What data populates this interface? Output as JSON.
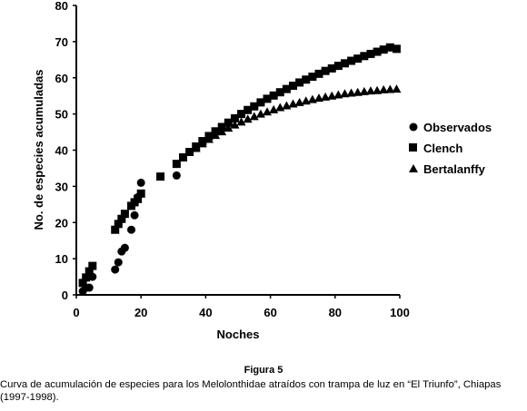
{
  "chart_data": {
    "type": "scatter",
    "title": "",
    "xlabel": "Noches",
    "ylabel": "No. de especies acumuladas",
    "xlim": [
      0,
      100
    ],
    "ylim": [
      0,
      80
    ],
    "xticks": [
      0,
      20,
      40,
      60,
      80,
      100
    ],
    "yticks": [
      0,
      10,
      20,
      30,
      40,
      50,
      60,
      70,
      80
    ],
    "grid": false,
    "legend_position": "right",
    "series": [
      {
        "name": "Observados",
        "marker": "circle",
        "x": [
          2,
          3,
          4,
          5,
          12,
          13,
          14,
          15,
          17,
          18,
          19,
          20,
          31
        ],
        "y": [
          1,
          2,
          2,
          5,
          7,
          9,
          12,
          13,
          18,
          22,
          27,
          31,
          33
        ]
      },
      {
        "name": "Clench",
        "marker": "square",
        "x": [
          2,
          3,
          4,
          5,
          12,
          13,
          14,
          15,
          17,
          18,
          19,
          20,
          26,
          31,
          33,
          35,
          37,
          39,
          41,
          43,
          45,
          47,
          49,
          51,
          53,
          55,
          57,
          59,
          61,
          63,
          65,
          67,
          69,
          71,
          73,
          75,
          77,
          79,
          81,
          83,
          85,
          87,
          89,
          91,
          93,
          95,
          97,
          99
        ],
        "y": [
          3.3,
          4.8,
          6.5,
          8.0,
          18.0,
          19.6,
          21.0,
          22.4,
          24.6,
          25.6,
          26.5,
          28.0,
          32.7,
          36.2,
          38.0,
          39.5,
          41.0,
          42.5,
          43.9,
          45.2,
          46.4,
          47.6,
          48.8,
          50.0,
          51.1,
          52.1,
          53.2,
          54.2,
          55.1,
          56.0,
          56.9,
          57.8,
          58.7,
          59.5,
          60.3,
          61.1,
          61.9,
          62.6,
          63.3,
          64.0,
          64.7,
          65.3,
          66.0,
          66.6,
          67.2,
          67.8,
          68.4,
          68.0
        ]
      },
      {
        "name": "Bertalanffy",
        "marker": "triangle",
        "x": [
          37,
          39,
          41,
          43,
          45,
          47,
          49,
          51,
          53,
          55,
          57,
          59,
          61,
          63,
          65,
          67,
          69,
          71,
          73,
          75,
          77,
          79,
          81,
          83,
          85,
          87,
          89,
          91,
          93,
          95,
          97,
          99
        ],
        "y": [
          40.5,
          41.8,
          43.0,
          44.1,
          45.1,
          46.1,
          47.0,
          47.8,
          48.6,
          49.3,
          50.0,
          50.6,
          51.2,
          51.8,
          52.3,
          52.8,
          53.2,
          53.6,
          54.0,
          54.4,
          54.7,
          55.0,
          55.3,
          55.6,
          55.8,
          56.0,
          56.2,
          56.4,
          56.5,
          56.7,
          56.8,
          56.9
        ]
      }
    ]
  },
  "caption": {
    "title": "Figura 5",
    "text": "Curva de acumulación de especies para los Melolonthidae atraídos con trampa de luz en “El Triunfo”, Chiapas (1997-1998)."
  }
}
